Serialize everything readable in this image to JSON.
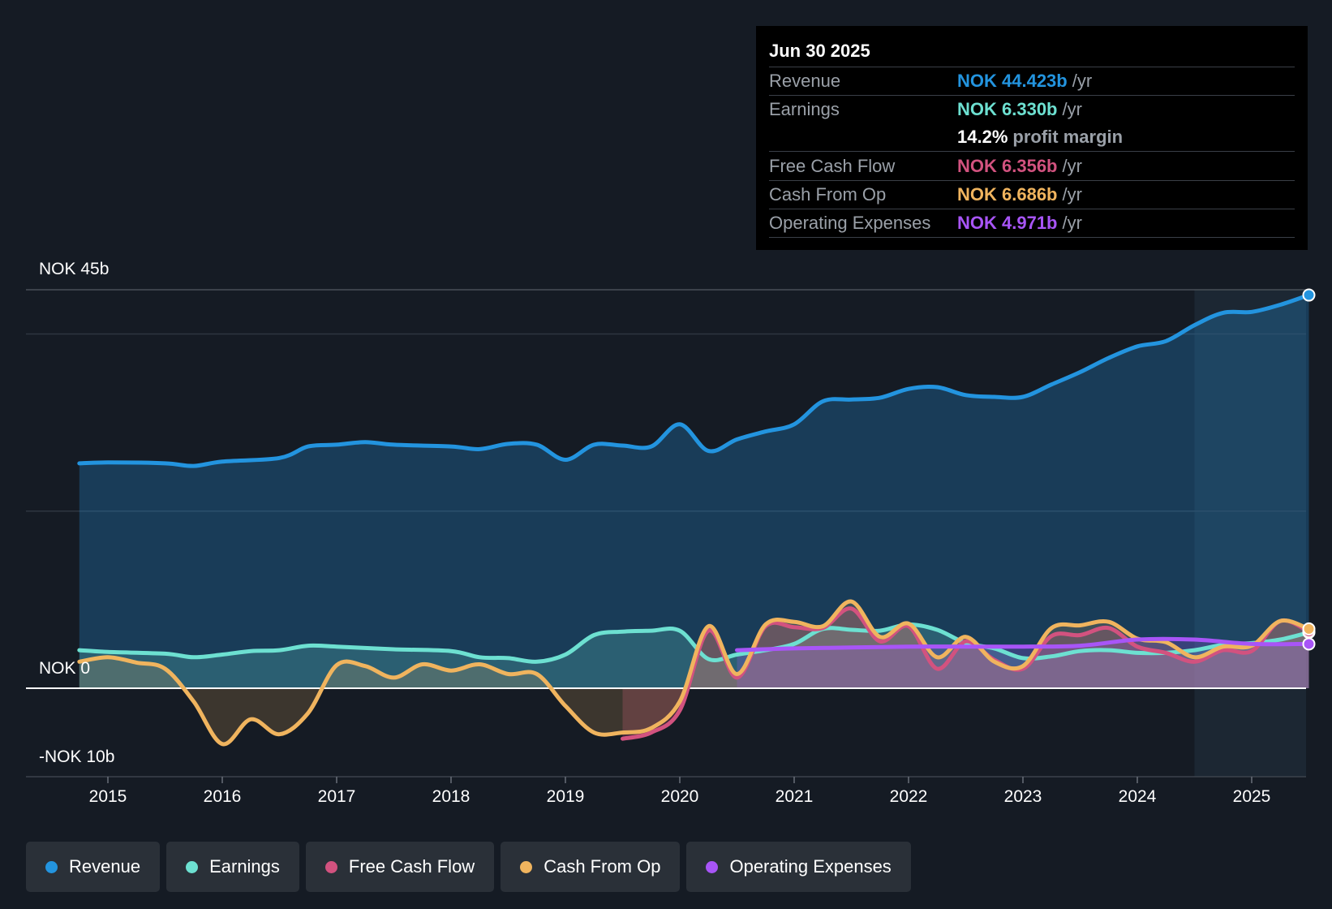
{
  "tooltip": {
    "date": "Jun 30 2025",
    "rows": [
      {
        "label": "Revenue",
        "value": "NOK 44.423b",
        "unit": "/yr",
        "color": "#2394df"
      },
      {
        "label": "Earnings",
        "value": "NOK 6.330b",
        "unit": "/yr",
        "color": "#6de0d1"
      },
      {
        "label": "",
        "value": "14.2%",
        "unit": "profit margin",
        "color": "#ffffff"
      },
      {
        "label": "Free Cash Flow",
        "value": "NOK 6.356b",
        "unit": "/yr",
        "color": "#d2527f"
      },
      {
        "label": "Cash From Op",
        "value": "NOK 6.686b",
        "unit": "/yr",
        "color": "#f0b45e"
      },
      {
        "label": "Operating Expenses",
        "value": "NOK 4.971b",
        "unit": "/yr",
        "color": "#a855f7"
      }
    ]
  },
  "axis": {
    "top_label": "NOK 45b",
    "zero_label": "NOK 0",
    "bottom_label": "-NOK 10b"
  },
  "legend": [
    {
      "label": "Revenue",
      "color": "#2394df"
    },
    {
      "label": "Earnings",
      "color": "#6de0d1"
    },
    {
      "label": "Free Cash Flow",
      "color": "#d2527f"
    },
    {
      "label": "Cash From Op",
      "color": "#f0b45e"
    },
    {
      "label": "Operating Expenses",
      "color": "#a855f7"
    }
  ],
  "chart_data": {
    "type": "line",
    "title": "",
    "xlabel": "",
    "ylabel": "",
    "ylim": [
      -10,
      45
    ],
    "xlim": [
      2014.75,
      2025.5
    ],
    "x_ticks": [
      "2015",
      "2016",
      "2017",
      "2018",
      "2019",
      "2020",
      "2021",
      "2022",
      "2023",
      "2024",
      "2025"
    ],
    "y_ticks": [
      "NOK 45b",
      "NOK 0",
      "-NOK 10b"
    ],
    "highlight_start": 2024.5,
    "series": [
      {
        "name": "Revenue",
        "color": "#2394df",
        "x": [
          2014.75,
          2015.0,
          2015.5,
          2015.75,
          2016.0,
          2016.5,
          2016.75,
          2017.0,
          2017.25,
          2017.5,
          2018.0,
          2018.25,
          2018.5,
          2018.75,
          2019.0,
          2019.25,
          2019.5,
          2019.75,
          2020.0,
          2020.25,
          2020.5,
          2020.75,
          2021.0,
          2021.25,
          2021.5,
          2021.75,
          2022.0,
          2022.25,
          2022.5,
          2022.75,
          2023.0,
          2023.25,
          2023.5,
          2023.75,
          2024.0,
          2024.25,
          2024.5,
          2024.75,
          2025.0,
          2025.25,
          2025.5
        ],
        "values": [
          25.4,
          25.5,
          25.4,
          25.1,
          25.6,
          26.0,
          27.3,
          27.5,
          27.8,
          27.5,
          27.3,
          27.0,
          27.6,
          27.5,
          25.8,
          27.5,
          27.4,
          27.3,
          29.8,
          26.8,
          28.1,
          29.0,
          29.8,
          32.4,
          32.6,
          32.8,
          33.8,
          34.0,
          33.1,
          32.9,
          32.9,
          34.3,
          35.7,
          37.3,
          38.6,
          39.2,
          41.0,
          42.4,
          42.5,
          43.3,
          44.4
        ]
      },
      {
        "name": "Earnings",
        "color": "#6de0d1",
        "x": [
          2014.75,
          2015.0,
          2015.5,
          2015.75,
          2016.0,
          2016.25,
          2016.5,
          2016.75,
          2017.0,
          2017.5,
          2018.0,
          2018.25,
          2018.5,
          2018.75,
          2019.0,
          2019.25,
          2019.5,
          2019.75,
          2020.0,
          2020.25,
          2020.5,
          2020.75,
          2021.0,
          2021.25,
          2021.5,
          2021.75,
          2022.0,
          2022.25,
          2022.5,
          2022.75,
          2023.0,
          2023.25,
          2023.5,
          2023.75,
          2024.0,
          2024.25,
          2024.5,
          2024.75,
          2025.0,
          2025.25,
          2025.5
        ],
        "values": [
          4.3,
          4.1,
          3.9,
          3.5,
          3.8,
          4.2,
          4.3,
          4.8,
          4.7,
          4.4,
          4.2,
          3.5,
          3.4,
          3.0,
          3.8,
          6.0,
          6.4,
          6.5,
          6.5,
          3.3,
          3.8,
          4.3,
          5.0,
          6.7,
          6.6,
          6.5,
          7.2,
          6.6,
          5.1,
          4.5,
          3.4,
          3.6,
          4.2,
          4.3,
          4.0,
          4.0,
          4.3,
          4.9,
          5.1,
          5.5,
          6.3
        ]
      },
      {
        "name": "Free Cash Flow",
        "color": "#d2527f",
        "x": [
          2019.5,
          2019.75,
          2020.0,
          2020.25,
          2020.5,
          2020.75,
          2021.0,
          2021.25,
          2021.5,
          2021.75,
          2022.0,
          2022.25,
          2022.5,
          2022.75,
          2023.0,
          2023.25,
          2023.5,
          2023.75,
          2024.0,
          2024.25,
          2024.5,
          2024.75,
          2025.0,
          2025.25,
          2025.5
        ],
        "values": [
          -5.7,
          -5.0,
          -2.5,
          6.5,
          1.2,
          7.0,
          6.9,
          6.8,
          9.0,
          5.3,
          7.0,
          2.2,
          5.3,
          3.2,
          2.2,
          5.9,
          6.0,
          6.8,
          4.7,
          4.0,
          3.0,
          4.3,
          4.2,
          7.6,
          6.4
        ]
      },
      {
        "name": "Cash From Op",
        "color": "#f0b45e",
        "x": [
          2014.75,
          2015.0,
          2015.25,
          2015.5,
          2015.75,
          2016.0,
          2016.25,
          2016.5,
          2016.75,
          2017.0,
          2017.25,
          2017.5,
          2017.75,
          2018.0,
          2018.25,
          2018.5,
          2018.75,
          2019.0,
          2019.25,
          2019.5,
          2019.75,
          2020.0,
          2020.25,
          2020.5,
          2020.75,
          2021.0,
          2021.25,
          2021.5,
          2021.75,
          2022.0,
          2022.25,
          2022.5,
          2022.75,
          2023.0,
          2023.25,
          2023.5,
          2023.75,
          2024.0,
          2024.25,
          2024.5,
          2024.75,
          2025.0,
          2025.25,
          2025.5
        ],
        "values": [
          3.0,
          3.5,
          2.9,
          2.2,
          -1.5,
          -6.3,
          -3.5,
          -5.2,
          -2.8,
          2.6,
          2.5,
          1.2,
          2.7,
          2.0,
          2.7,
          1.6,
          1.6,
          -2.0,
          -5.0,
          -5.0,
          -4.5,
          -1.5,
          7.0,
          1.6,
          7.2,
          7.5,
          7.0,
          9.8,
          5.8,
          7.3,
          3.5,
          5.8,
          3.0,
          2.5,
          6.8,
          7.1,
          7.5,
          5.6,
          5.2,
          3.5,
          4.7,
          4.8,
          7.6,
          6.7
        ]
      },
      {
        "name": "Operating Expenses",
        "color": "#a855f7",
        "x": [
          2020.5,
          2021.0,
          2021.5,
          2022.0,
          2022.5,
          2023.0,
          2023.5,
          2024.0,
          2024.5,
          2025.0,
          2025.5
        ],
        "values": [
          4.3,
          4.5,
          4.6,
          4.7,
          4.7,
          4.7,
          4.8,
          5.5,
          5.5,
          5.0,
          5.0
        ]
      }
    ]
  }
}
